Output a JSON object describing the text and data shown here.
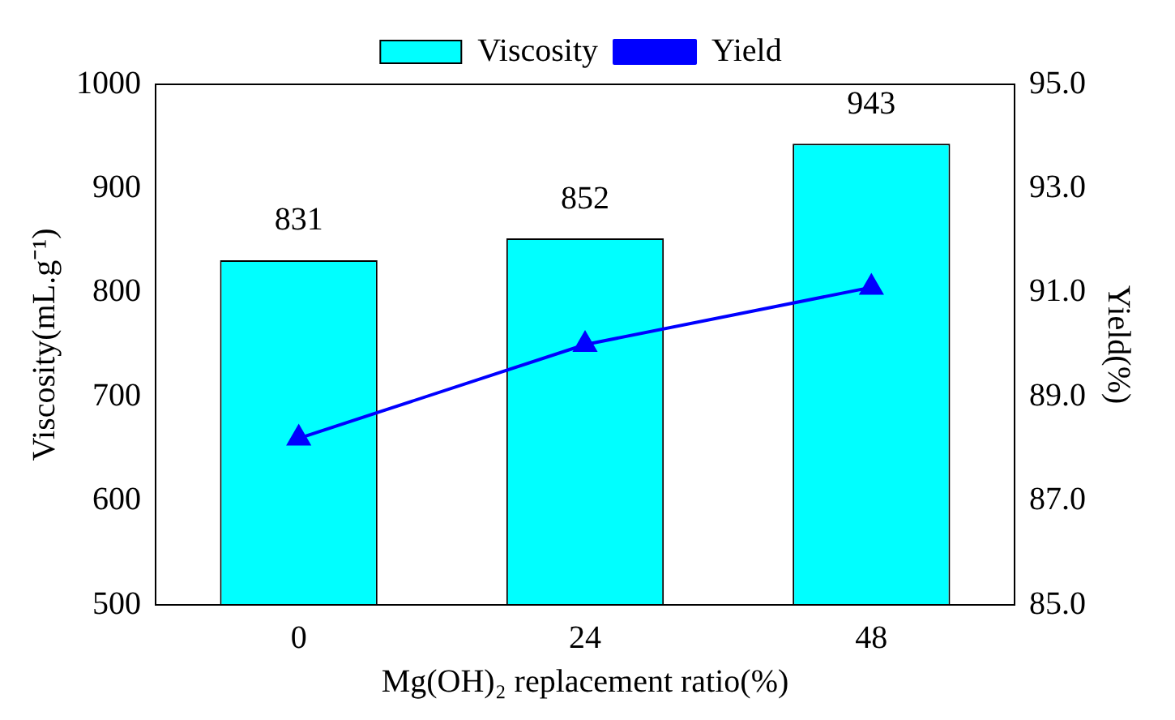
{
  "chart_data": {
    "type": "bar",
    "xlabel": "Mg(OH)₂ replacement ratio(%)",
    "ylabel": "Viscosity(mL.g⁻¹)",
    "y2label": "Yield(%)",
    "categories": [
      "0",
      "24",
      "48"
    ],
    "series": [
      {
        "name": "Viscosity",
        "color": "#00ffff",
        "values": [
          831,
          852,
          943
        ],
        "value_labels": [
          "831",
          "852",
          "943"
        ]
      },
      {
        "name": "Yield",
        "type": "line",
        "axis": "y2",
        "color": "#0000ff",
        "values": [
          88.2,
          90.0,
          91.1
        ]
      }
    ],
    "ylim": [
      500,
      1000
    ],
    "yticks": [
      500,
      600,
      700,
      800,
      900,
      1000
    ],
    "y2lim": [
      85,
      95
    ],
    "y2ticks": [
      {
        "value": 85,
        "label": "85.0"
      },
      {
        "value": 87,
        "label": "87.0"
      },
      {
        "value": 89,
        "label": "89.0"
      },
      {
        "value": 91,
        "label": "91.0"
      },
      {
        "value": 93,
        "label": "93.0"
      },
      {
        "value": 95,
        "label": "95.0"
      }
    ],
    "legend": "top",
    "marker": "triangle",
    "line_style": "solid",
    "grid": false
  }
}
